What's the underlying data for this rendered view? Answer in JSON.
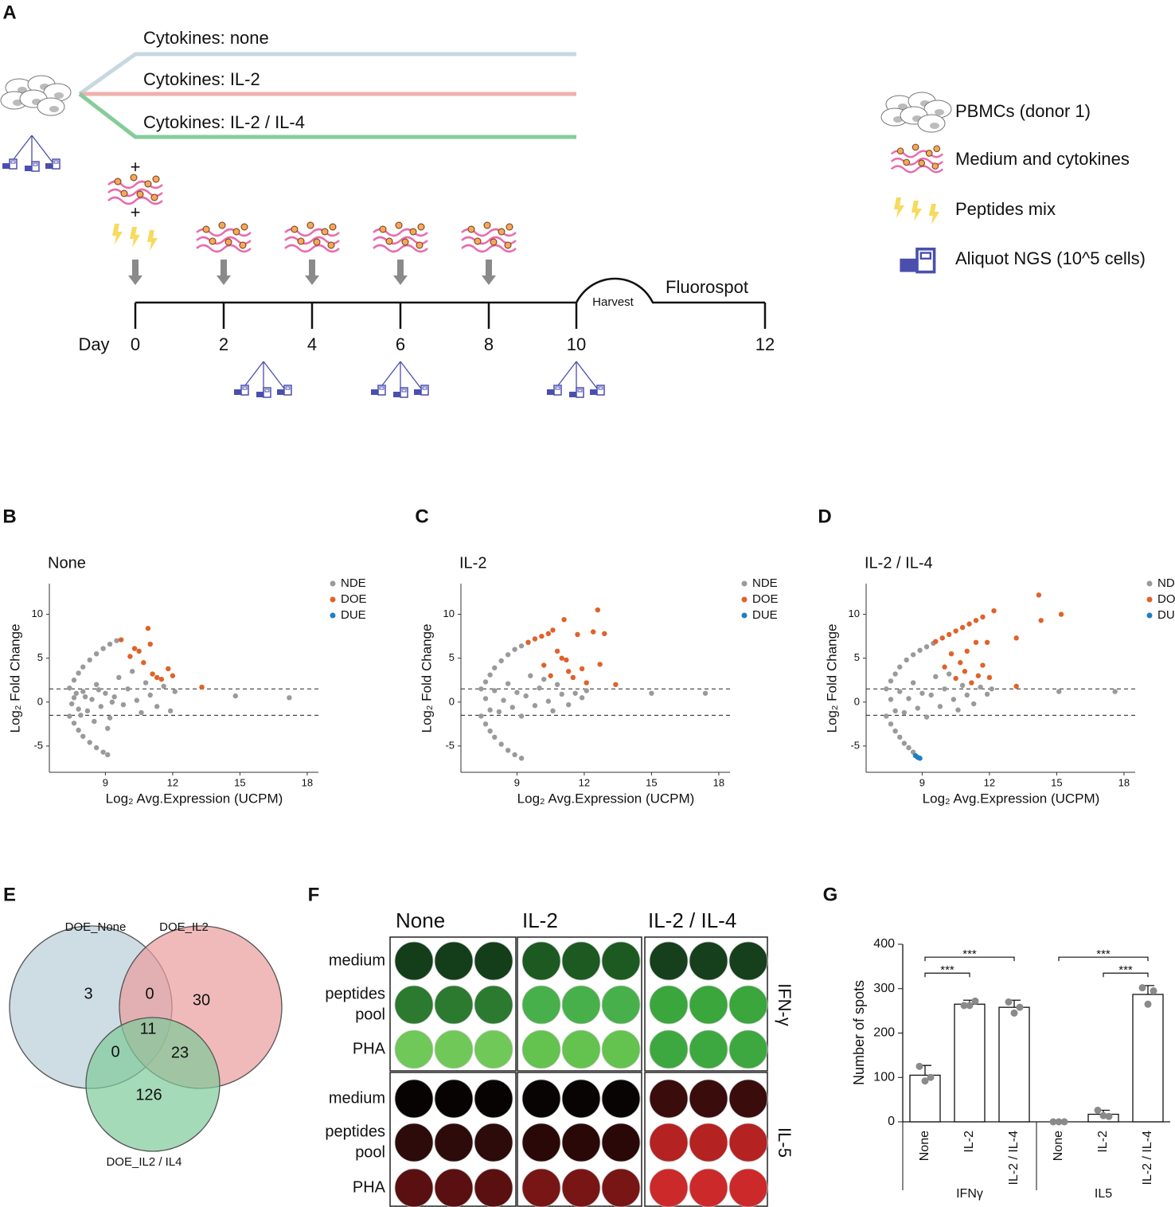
{
  "panel_labels": [
    "A",
    "B",
    "C",
    "D",
    "E",
    "F",
    "G"
  ],
  "schematic": {
    "branches": [
      {
        "label": "Cytokines: none",
        "color": "#c8d8e2"
      },
      {
        "label": "Cytokines: IL-2",
        "color": "#f0b0ae"
      },
      {
        "label": "Cytokines: IL-2 / IL-4",
        "color": "#86cc9a"
      }
    ],
    "plus": [
      "+",
      "+"
    ],
    "day_label": "Day",
    "days": [
      "0",
      "2",
      "4",
      "6",
      "8",
      "10",
      "12"
    ],
    "harvest": "Harvest",
    "fluorospot": "Fluorospot",
    "legend": [
      "PBMCs (donor 1)",
      "Medium and cytokines",
      "Peptides mix",
      "Aliquot NGS (10^5 cells)"
    ]
  },
  "chart_data": [
    {
      "type": "scatter",
      "title": "None",
      "xlabel": "Log₂ Avg.Expression (UCPM)",
      "ylabel": "Log₂ Fold Change",
      "xlim": [
        6.5,
        18.5
      ],
      "ylim": [
        -8,
        13.5
      ],
      "xticks": [
        9,
        12,
        15,
        18
      ],
      "yticks": [
        -5,
        0,
        5,
        10
      ],
      "hlines": [
        1.5,
        -1.5
      ],
      "legend": "right",
      "series": [
        {
          "name": "NDE",
          "color": "#9a9a9a",
          "x": [
            7.4,
            7.6,
            7.8,
            8.0,
            8.3,
            8.6,
            8.9,
            9.2,
            9.5,
            7.4,
            7.6,
            7.8,
            8.0,
            8.3,
            8.6,
            8.9,
            9.1,
            7.6,
            7.8,
            8.0,
            8.2,
            8.4,
            8.6,
            8.8,
            9.0,
            9.2,
            9.4,
            9.6,
            9.8,
            10.0,
            10.2,
            10.4,
            10.6,
            10.8,
            11.0,
            11.3,
            11.6,
            11.9,
            12.1,
            14.8,
            17.2,
            7.5,
            7.7,
            7.9,
            8.1,
            8.5,
            8.7,
            9.1,
            9.3
          ],
          "values": [
            1.6,
            2.5,
            3.3,
            4.0,
            4.8,
            5.5,
            6.1,
            6.6,
            7.0,
            -1.6,
            -2.4,
            -3.2,
            -3.9,
            -4.6,
            -5.2,
            -5.7,
            -6.0,
            0.5,
            -0.8,
            1.2,
            -1.0,
            0.3,
            2.0,
            -0.5,
            1.0,
            -1.8,
            0.6,
            2.8,
            -0.3,
            1.5,
            3.5,
            0.2,
            -1.2,
            2.2,
            0.8,
            -0.5,
            1.8,
            -1.0,
            1.2,
            0.7,
            0.5,
            -0.2,
            1.0,
            -1.5,
            0.6,
            -2.2,
            1.4,
            -3.0,
            0.0
          ]
        },
        {
          "name": "DOE",
          "color": "#e0622a",
          "x": [
            9.7,
            10.1,
            10.3,
            10.5,
            10.7,
            10.9,
            11.0,
            11.1,
            11.3,
            11.5,
            11.8,
            12.0,
            13.3
          ],
          "values": [
            7.1,
            5.2,
            6.1,
            5.8,
            4.5,
            8.4,
            6.6,
            3.2,
            2.8,
            2.6,
            3.8,
            3.0,
            1.7
          ]
        },
        {
          "name": "DUE",
          "color": "#1f7fc0",
          "x": [],
          "values": []
        }
      ]
    },
    {
      "type": "scatter",
      "title": "IL-2",
      "xlabel": "Log₂ Avg.Expression (UCPM)",
      "ylabel": "Log₂ Fold Change",
      "xlim": [
        6.5,
        18.5
      ],
      "ylim": [
        -8,
        13.5
      ],
      "xticks": [
        9,
        12,
        15,
        18
      ],
      "yticks": [
        -5,
        0,
        5,
        10
      ],
      "hlines": [
        1.5,
        -1.5
      ],
      "legend": "right",
      "series": [
        {
          "name": "NDE",
          "color": "#9a9a9a",
          "x": [
            7.4,
            7.6,
            7.8,
            8.0,
            8.3,
            8.6,
            8.9,
            9.2,
            9.5,
            7.4,
            7.6,
            7.8,
            8.0,
            8.3,
            8.6,
            8.9,
            9.2,
            7.6,
            7.8,
            8.0,
            8.2,
            8.4,
            8.6,
            8.8,
            9.0,
            9.2,
            9.4,
            9.6,
            9.8,
            10.0,
            10.2,
            10.4,
            10.6,
            10.8,
            11.0,
            11.3,
            11.6,
            11.9,
            12.1,
            15.0,
            17.4
          ],
          "values": [
            1.5,
            2.3,
            3.1,
            3.9,
            4.7,
            5.4,
            6.0,
            6.4,
            6.8,
            -1.6,
            -2.5,
            -3.3,
            -4.0,
            -4.8,
            -5.5,
            -6.0,
            -6.4,
            0.4,
            -0.9,
            1.3,
            -1.1,
            0.2,
            2.1,
            -0.6,
            1.1,
            -1.6,
            0.7,
            3.0,
            -0.4,
            1.6,
            2.6,
            0.1,
            -1.0,
            2.0,
            0.9,
            -0.3,
            1.0,
            0.5,
            1.3,
            1.0,
            1.0
          ]
        },
        {
          "name": "DOE",
          "color": "#e0622a",
          "x": [
            9.5,
            9.8,
            10.1,
            10.4,
            10.6,
            10.2,
            10.5,
            10.8,
            11.0,
            11.2,
            11.1,
            11.3,
            11.5,
            11.7,
            12.1,
            12.4,
            12.6,
            12.7,
            12.9,
            13.4,
            11.9
          ],
          "values": [
            6.8,
            7.2,
            7.5,
            7.8,
            8.2,
            4.2,
            3.0,
            5.8,
            5.0,
            4.8,
            9.4,
            3.5,
            2.8,
            7.7,
            2.2,
            8.0,
            10.5,
            4.3,
            7.8,
            2.0,
            3.8
          ]
        },
        {
          "name": "DUE",
          "color": "#1f7fc0",
          "x": [],
          "values": []
        }
      ]
    },
    {
      "type": "scatter",
      "title": "IL-2 / IL-4",
      "xlabel": "Log₂ Avg.Expression (UCPM)",
      "ylabel": "Log₂ Fold Change",
      "xlim": [
        6.5,
        18.5
      ],
      "ylim": [
        -8,
        13.5
      ],
      "xticks": [
        9,
        12,
        15,
        18
      ],
      "yticks": [
        -5,
        0,
        5,
        10
      ],
      "hlines": [
        1.5,
        -1.5
      ],
      "legend": "right",
      "series": [
        {
          "name": "NDE",
          "color": "#9a9a9a",
          "x": [
            7.4,
            7.6,
            7.8,
            8.0,
            8.3,
            8.6,
            8.9,
            9.2,
            9.5,
            7.4,
            7.6,
            7.8,
            8.0,
            8.2,
            8.4,
            8.6,
            7.6,
            7.8,
            8.0,
            8.2,
            8.4,
            8.6,
            8.8,
            9.0,
            9.2,
            9.4,
            9.6,
            9.8,
            10.0,
            10.2,
            10.4,
            10.6,
            10.8,
            11.0,
            11.3,
            11.6,
            11.9,
            12.1,
            15.1,
            17.6
          ],
          "values": [
            1.5,
            2.4,
            3.2,
            4.0,
            4.8,
            5.4,
            5.9,
            6.3,
            6.7,
            -1.6,
            -2.5,
            -3.3,
            -4.0,
            -4.7,
            -5.2,
            -5.7,
            0.3,
            -1.0,
            1.2,
            -1.2,
            0.4,
            2.2,
            -0.7,
            1.0,
            -1.7,
            0.8,
            2.9,
            -0.5,
            1.5,
            3.2,
            0.3,
            -0.9,
            1.9,
            0.8,
            -0.2,
            1.7,
            0.9,
            1.5,
            1.2,
            1.2
          ]
        },
        {
          "name": "DOE",
          "color": "#e0622a",
          "x": [
            9.6,
            9.9,
            10.2,
            10.5,
            10.8,
            11.1,
            11.4,
            11.7,
            12.2,
            10.0,
            10.3,
            10.5,
            10.7,
            10.9,
            11.0,
            11.2,
            11.4,
            11.5,
            11.7,
            11.9,
            12.0,
            13.2,
            13.2,
            14.2,
            14.3,
            15.2
          ],
          "values": [
            6.9,
            7.3,
            7.7,
            8.1,
            8.5,
            8.9,
            9.3,
            9.7,
            10.4,
            4.0,
            5.5,
            2.7,
            4.5,
            3.5,
            5.8,
            2.2,
            6.8,
            3.0,
            4.2,
            6.8,
            2.8,
            7.3,
            1.8,
            12.2,
            9.3,
            10.0
          ]
        },
        {
          "name": "DUE",
          "color": "#1f7fc0",
          "x": [
            8.7,
            8.8,
            8.9
          ],
          "values": [
            -6.1,
            -6.3,
            -6.4
          ]
        }
      ]
    },
    {
      "type": "venn",
      "sets": [
        {
          "name": "DOE_None",
          "color": "#b9cdd9"
        },
        {
          "name": "DOE_IL2",
          "color": "#eb9d9c"
        },
        {
          "name": "DOE_IL2 / IL4",
          "color": "#7fca9a"
        }
      ],
      "values": [
        3,
        0,
        30,
        0,
        11,
        23,
        126
      ]
    },
    {
      "type": "bar",
      "ylabel": "Number of spots",
      "ylim": [
        0,
        400
      ],
      "yticks": [
        0,
        100,
        200,
        300,
        400
      ],
      "color": "#ffffff",
      "point_color": "#8a8a8a",
      "groups": [
        {
          "name": "IFNγ",
          "categories": [
            "None",
            "IL-2",
            "IL-2 / IL-4"
          ],
          "values": [
            105,
            265,
            258
          ],
          "errors": [
            22,
            9,
            16
          ],
          "points": [
            [
              125,
              100,
              92
            ],
            [
              262,
              272,
              262
            ],
            [
              270,
              258,
              245
            ]
          ],
          "brackets": [
            {
              "pair": [
                0,
                1
              ],
              "label": "***"
            },
            {
              "pair": [
                0,
                2
              ],
              "label": "***"
            }
          ]
        },
        {
          "name": "IL5",
          "categories": [
            "None",
            "IL-2",
            "IL-2 / IL-4"
          ],
          "values": [
            0,
            17,
            287
          ],
          "errors": [
            0,
            9,
            20
          ],
          "points": [
            [
              0,
              0,
              0
            ],
            [
              26,
              12,
              14
            ],
            [
              302,
              295,
              265
            ]
          ],
          "brackets": [
            {
              "pair": [
                1,
                2
              ],
              "label": "***"
            },
            {
              "pair": [
                0,
                2
              ],
              "label": "***"
            }
          ]
        }
      ]
    }
  ],
  "fluorospot": {
    "columns": [
      "None",
      "IL-2",
      "IL-2 / IL-4"
    ],
    "rows": [
      [
        "medium"
      ],
      [
        "peptides",
        "pool"
      ],
      [
        "PHA"
      ]
    ],
    "readouts": [
      "IFN-γ",
      "IL-5"
    ]
  }
}
